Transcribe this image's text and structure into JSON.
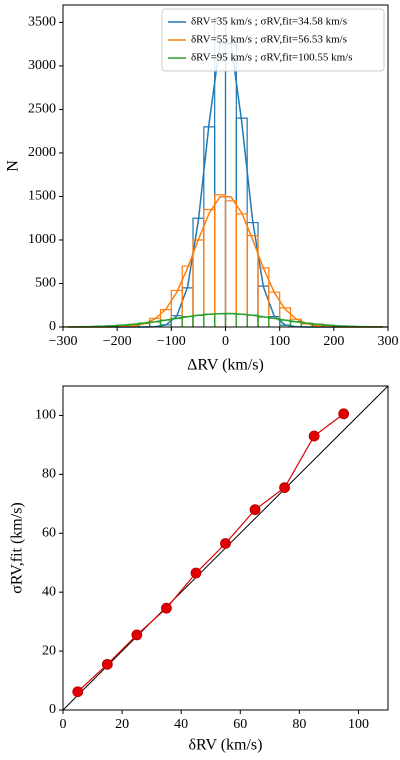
{
  "chart_data": [
    {
      "type": "histogram",
      "xlabel": "ΔRV (km/s)",
      "ylabel": "N",
      "xlim": [
        -300,
        300
      ],
      "xticks": [
        {
          "value": -300,
          "label": "−300"
        },
        {
          "value": -200,
          "label": "−200"
        },
        {
          "value": -100,
          "label": "−100"
        },
        0,
        100,
        200,
        300
      ],
      "ylim": [
        0,
        3700
      ],
      "yticks": [
        0,
        500,
        1000,
        1500,
        2000,
        2500,
        3000,
        3500
      ],
      "legend": "upper right",
      "bins": [
        -300,
        -280,
        -260,
        -240,
        -220,
        -200,
        -180,
        -160,
        -140,
        -120,
        -100,
        -80,
        -60,
        -40,
        -20,
        0,
        20,
        40,
        60,
        80,
        100,
        120,
        140,
        160,
        180,
        200,
        220,
        240,
        260,
        280,
        300
      ],
      "fit_x": [
        -290,
        -270,
        -250,
        -230,
        -210,
        -190,
        -170,
        -150,
        -130,
        -110,
        -90,
        -70,
        -50,
        -30,
        -10,
        10,
        30,
        50,
        70,
        90,
        110,
        130,
        150,
        170,
        190,
        210,
        230,
        250,
        270,
        290
      ],
      "series": [
        {
          "name": "δRV=35 km/s ; σRV,fit=34.58 km/s",
          "color": "#1f77b4",
          "values": [
            0,
            0,
            0,
            0,
            0,
            0,
            0,
            0,
            4,
            25,
            130,
            450,
            1250,
            2300,
            3550,
            3250,
            2400,
            1200,
            470,
            120,
            20,
            3,
            0,
            0,
            0,
            0,
            0,
            0,
            0,
            0
          ],
          "fit": [
            0,
            0,
            0,
            0,
            0,
            0,
            0,
            0,
            3,
            24,
            125,
            460,
            1226,
            2355,
            3264,
            3264,
            2355,
            1226,
            460,
            125,
            24,
            3,
            0,
            0,
            0,
            0,
            0,
            0,
            0,
            0
          ]
        },
        {
          "name": "δRV=55 km/s ; σRV,fit=56.53 km/s",
          "color": "#ff7f0e",
          "values": [
            0,
            0,
            0,
            0,
            0,
            5,
            15,
            40,
            100,
            200,
            420,
            700,
            1000,
            1350,
            1520,
            1450,
            1300,
            1050,
            680,
            400,
            220,
            90,
            35,
            12,
            4,
            0,
            0,
            0,
            0,
            0
          ],
          "fit": [
            0,
            0,
            0,
            0,
            0,
            4,
            13,
            37,
            93,
            205,
            398,
            677,
            1006,
            1310,
            1496,
            1496,
            1310,
            1006,
            677,
            398,
            205,
            93,
            37,
            13,
            4,
            0,
            0,
            0,
            0,
            0
          ]
        },
        {
          "name": "δRV=95 km/s ; σRV,fit=100.55 km/s",
          "color": "#2ca02c",
          "values": [
            1,
            3,
            5,
            9,
            13,
            22,
            30,
            46,
            58,
            80,
            97,
            120,
            133,
            148,
            152,
            156,
            145,
            137,
            115,
            100,
            78,
            62,
            44,
            32,
            20,
            12,
            8,
            5,
            2,
            1
          ],
          "fit": [
            1,
            3,
            5,
            8,
            13,
            21,
            31,
            45,
            60,
            79,
            99,
            118,
            135,
            147,
            154,
            154,
            147,
            135,
            118,
            99,
            79,
            60,
            45,
            31,
            21,
            13,
            8,
            5,
            3,
            1
          ]
        }
      ]
    },
    {
      "type": "scatter",
      "xlabel": "δRV (km/s)",
      "ylabel": "σRV,fit (km/s)",
      "xlim": [
        0,
        110
      ],
      "xticks": [
        0,
        20,
        40,
        60,
        80,
        100
      ],
      "ylim": [
        0,
        110
      ],
      "yticks": [
        0,
        20,
        40,
        60,
        80,
        100
      ],
      "diagonal": true,
      "color": "#e00000",
      "x": [
        5,
        15,
        25,
        35,
        45,
        55,
        65,
        75,
        85,
        95
      ],
      "values": [
        6.2,
        15.5,
        25.5,
        34.58,
        46.5,
        56.53,
        68,
        75.5,
        93,
        100.55
      ]
    }
  ]
}
